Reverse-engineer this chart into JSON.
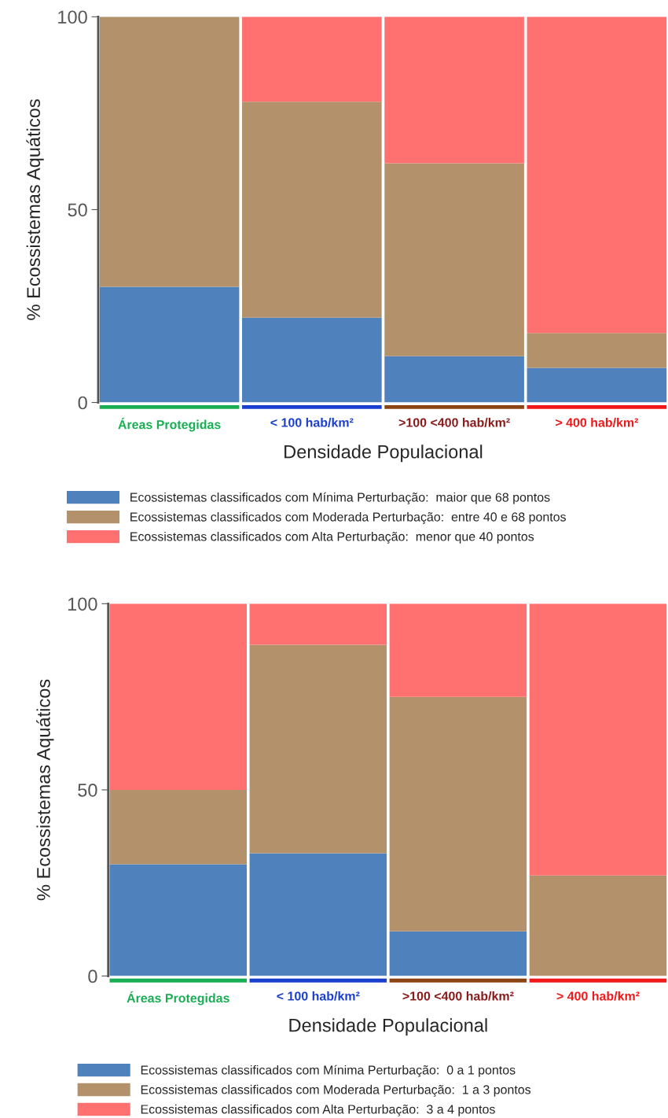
{
  "chart_data": [
    {
      "type": "bar",
      "stacked": true,
      "categories": [
        "Áreas Protegidas",
        "< 100 hab/km²",
        ">100 <400 hab/km²",
        "> 400 hab/km²"
      ],
      "xlabel": "Densidade Populacional",
      "ylabel": "% Ecossistemas Aquáticos",
      "ylim": [
        0,
        100
      ],
      "yticks": [
        0,
        50,
        100
      ],
      "grid": false,
      "legend": "bottom",
      "series": [
        {
          "name": "Ecossistemas classificados com Mínima Perturbação:  maior que 68 pontos",
          "color": "#4f81bd",
          "values": [
            30,
            22,
            12,
            9
          ]
        },
        {
          "name": "Ecossistemas classificados com Moderada Perturbação:  entre 40 e 68 pontos",
          "color": "#b3926b",
          "values": [
            70,
            56,
            50,
            9
          ]
        },
        {
          "name": "Ecossistemas classificados com Alta Perturbação:  menor que 40 pontos",
          "color": "#ff7171",
          "values": [
            0,
            22,
            38,
            82
          ]
        }
      ]
    },
    {
      "type": "bar",
      "stacked": true,
      "categories": [
        "Áreas Protegidas",
        "< 100 hab/km²",
        ">100 <400 hab/km²",
        "> 400 hab/km²"
      ],
      "xlabel": "Densidade Populacional",
      "ylabel": "% Ecossistemas Aquáticos",
      "ylim": [
        0,
        100
      ],
      "yticks": [
        0,
        50,
        100
      ],
      "grid": false,
      "legend": "bottom",
      "series": [
        {
          "name": "Ecossistemas classificados com Mínima Perturbação:  0 a 1 pontos",
          "color": "#4f81bd",
          "values": [
            30,
            33,
            12,
            0
          ]
        },
        {
          "name": "Ecossistemas classificados com Moderada Perturbação:  1 a 3 pontos",
          "color": "#b3926b",
          "values": [
            20,
            56,
            63,
            27
          ]
        },
        {
          "name": "Ecossistemas classificados com Alta Perturbação:  3 a 4 pontos",
          "color": "#ff7171",
          "values": [
            50,
            11,
            25,
            73
          ]
        }
      ]
    }
  ]
}
